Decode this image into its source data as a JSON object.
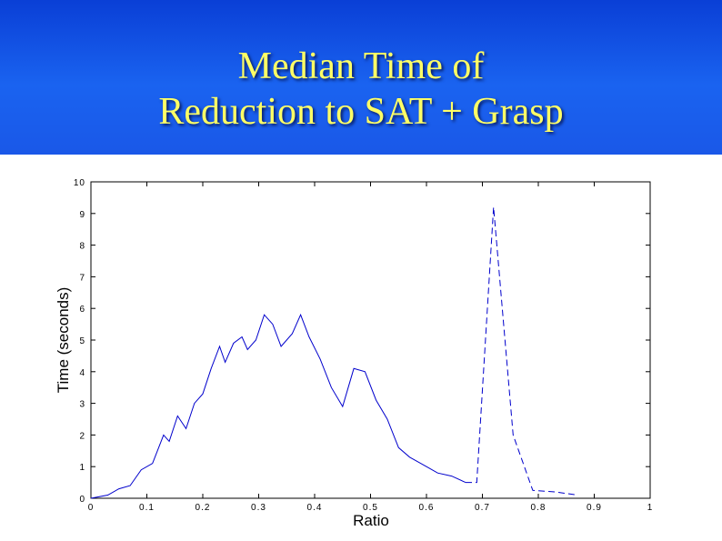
{
  "slide": {
    "title_line1": "Median Time of",
    "title_line2": "Reduction to SAT + Grasp",
    "banner_color": "#1a58e8",
    "title_color": "#ffff66"
  },
  "chart_data": {
    "type": "line",
    "title": "",
    "xlabel": "Ratio",
    "ylabel": "Time (seconds)",
    "xlim": [
      0,
      1
    ],
    "ylim": [
      0,
      10
    ],
    "xticks": [
      "0",
      "0.1",
      "0.2",
      "0.3",
      "0.4",
      "0.5",
      "0.6",
      "0.7",
      "0.8",
      "0.9",
      "1"
    ],
    "yticks": [
      "0",
      "1",
      "2",
      "3",
      "4",
      "5",
      "6",
      "7",
      "8",
      "9",
      "10"
    ],
    "grid": false,
    "line_color": "#0000cc",
    "series": [
      {
        "style": "solid",
        "x": [
          0.0,
          0.03,
          0.05,
          0.07,
          0.09,
          0.11,
          0.13,
          0.14,
          0.155,
          0.17,
          0.185,
          0.2,
          0.215,
          0.23,
          0.24,
          0.255,
          0.27,
          0.28,
          0.295,
          0.31,
          0.325,
          0.34,
          0.36,
          0.375,
          0.39,
          0.41,
          0.43,
          0.45,
          0.47,
          0.49,
          0.51,
          0.53,
          0.55,
          0.57,
          0.6,
          0.62,
          0.645,
          0.67
        ],
        "y": [
          0.0,
          0.1,
          0.3,
          0.4,
          0.9,
          1.1,
          2.0,
          1.8,
          2.6,
          2.2,
          3.0,
          3.3,
          4.1,
          4.8,
          4.3,
          4.9,
          5.1,
          4.7,
          5.0,
          5.8,
          5.5,
          4.8,
          5.2,
          5.8,
          5.1,
          4.4,
          3.5,
          2.9,
          4.1,
          4.0,
          3.1,
          2.5,
          1.6,
          1.3,
          1.0,
          0.8,
          0.7,
          0.5
        ]
      },
      {
        "style": "dashed",
        "x": [
          0.67,
          0.69,
          0.72,
          0.755,
          0.79,
          0.83,
          0.87
        ],
        "y": [
          0.5,
          0.5,
          9.2,
          2.0,
          0.25,
          0.2,
          0.1
        ]
      }
    ]
  }
}
